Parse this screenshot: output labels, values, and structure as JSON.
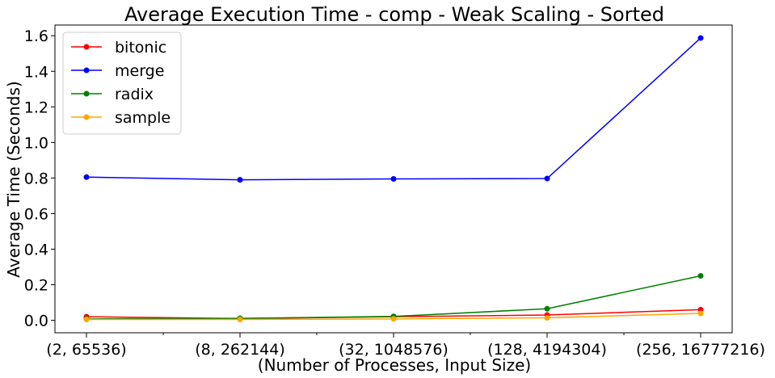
{
  "chart_data": {
    "type": "line",
    "title": "Average Execution Time - comp - Weak Scaling - Sorted",
    "xlabel": "(Number of Processes, Input Size)",
    "ylabel": "Average Time (Seconds)",
    "categories": [
      "(2, 65536)",
      "(8, 262144)",
      "(32, 1048576)",
      "(128, 4194304)",
      "(256, 16777216)"
    ],
    "ylim": [
      -0.07,
      1.66
    ],
    "yticks": [
      0.0,
      0.2,
      0.4,
      0.6,
      0.8,
      1.0,
      1.2,
      1.4,
      1.6
    ],
    "grid": false,
    "legend_position": "top-left",
    "series": [
      {
        "name": "bitonic",
        "color": "#ff0000",
        "values": [
          0.02,
          0.01,
          0.02,
          0.03,
          0.06
        ]
      },
      {
        "name": "merge",
        "color": "#0000ff",
        "values": [
          0.805,
          0.79,
          0.795,
          0.797,
          1.587
        ]
      },
      {
        "name": "radix",
        "color": "#008000",
        "values": [
          0.008,
          0.011,
          0.022,
          0.065,
          0.25
        ]
      },
      {
        "name": "sample",
        "color": "#ffa500",
        "values": [
          0.005,
          0.005,
          0.008,
          0.014,
          0.039
        ]
      }
    ]
  }
}
